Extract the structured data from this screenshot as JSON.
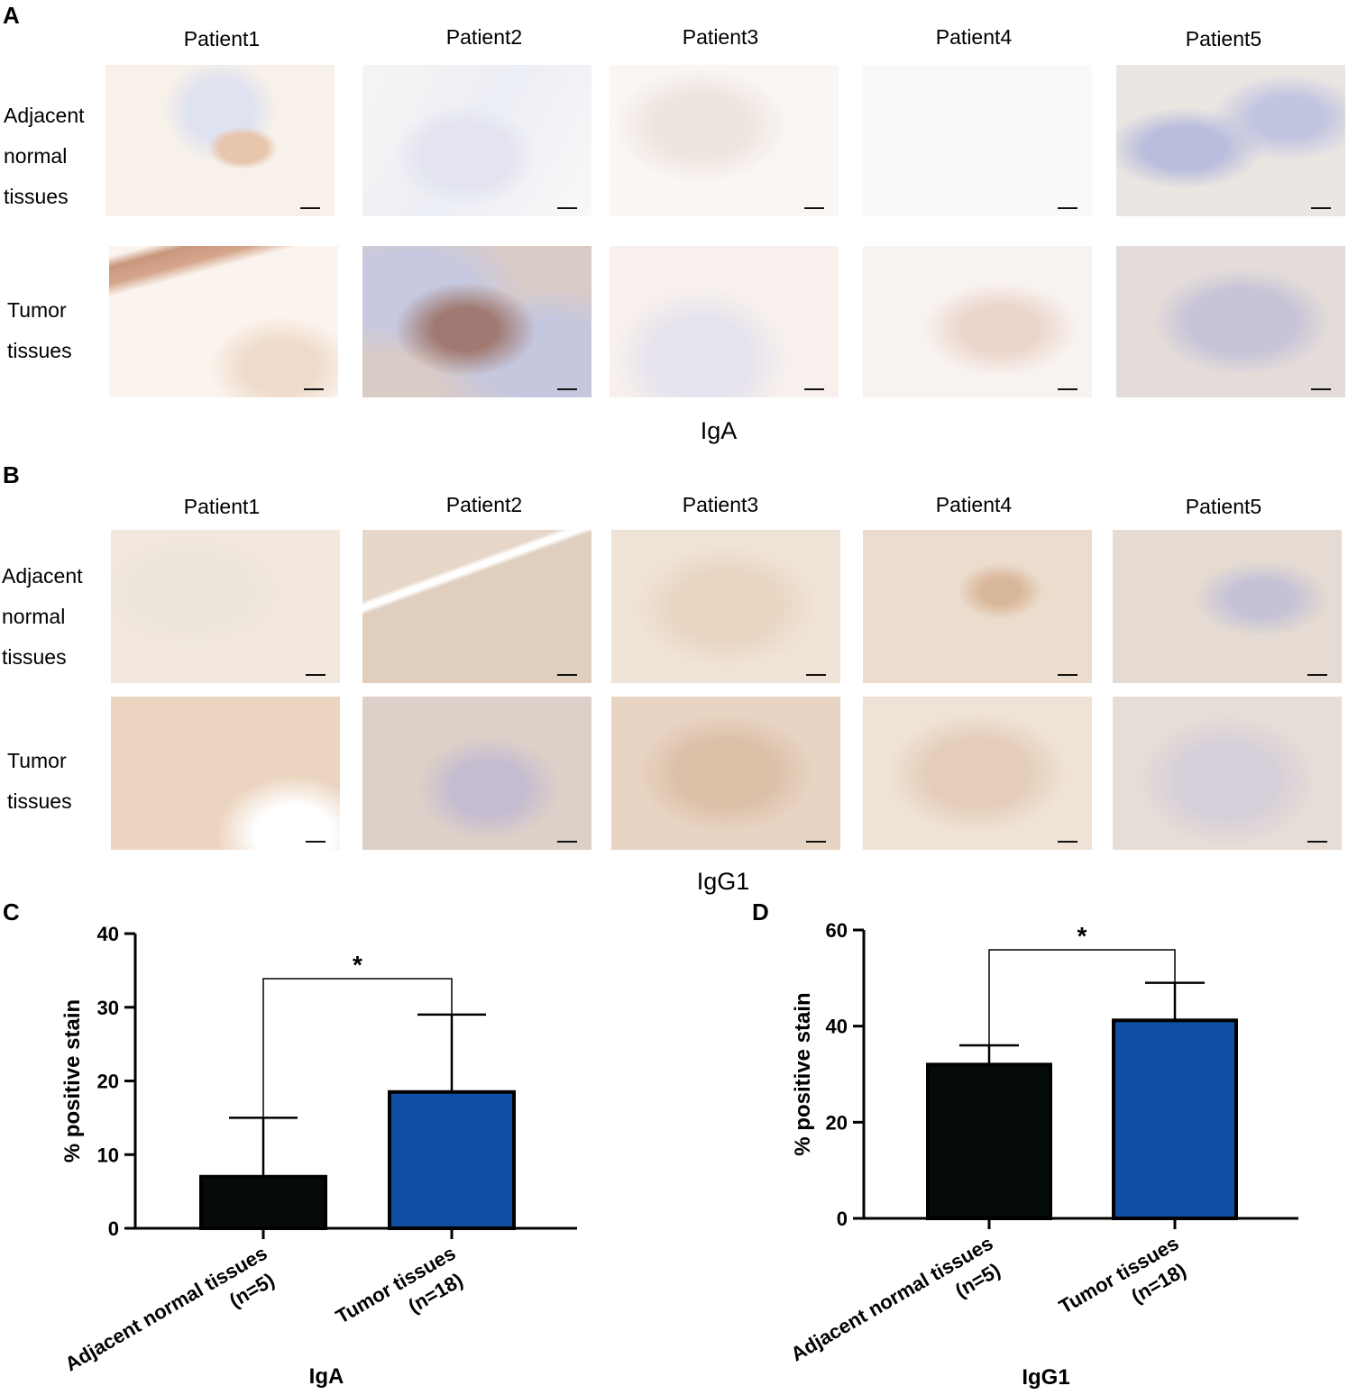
{
  "panels": {
    "A": {
      "letter": "A",
      "patients": [
        "Patient1",
        "Patient2",
        "Patient3",
        "Patient4",
        "Patient5"
      ],
      "row_normal": [
        "Adjacent",
        "normal",
        "tissues"
      ],
      "row_tumor": [
        "Tumor",
        "tissues"
      ],
      "caption": "IgA"
    },
    "B": {
      "letter": "B",
      "patients": [
        "Patient1",
        "Patient2",
        "Patient3",
        "Patient4",
        "Patient5"
      ],
      "row_normal": [
        "Adjacent",
        "normal",
        "tissues"
      ],
      "row_tumor": [
        "Tumor",
        "tissues"
      ],
      "caption": "IgG1"
    },
    "C": {
      "letter": "C"
    },
    "D": {
      "letter": "D"
    }
  },
  "colors": {
    "normal_bar": "#050a0a",
    "tumor_bar": "#0f4fa3",
    "stain_brown": "#c98e66",
    "stain_blue": "#7f8fc4"
  },
  "chart_data": [
    {
      "type": "bar",
      "panel": "C",
      "categories": [
        "Adjacent normal tissues\n(n=5)",
        "Tumor tissues\n(n=18)"
      ],
      "values": [
        7,
        18.5
      ],
      "error_upper": [
        15,
        29
      ],
      "ylabel": "% positive stain",
      "xlabel": "IgA",
      "ylim": [
        0,
        40
      ],
      "yticks": [
        0,
        10,
        20,
        30,
        40
      ],
      "significance": "*",
      "bar_colors": [
        "#050a0a",
        "#0f4fa3"
      ],
      "grid": false
    },
    {
      "type": "bar",
      "panel": "D",
      "categories": [
        "Adjacent normal tissues\n(n=5)",
        "Tumor tissues\n(n=18)"
      ],
      "values": [
        32,
        41.2
      ],
      "error_upper": [
        36,
        49
      ],
      "ylabel": "% positive stain",
      "xlabel": "IgG1",
      "ylim": [
        0,
        60
      ],
      "yticks": [
        0,
        20,
        40,
        60
      ],
      "significance": "*",
      "bar_colors": [
        "#050a0a",
        "#0f4fa3"
      ],
      "grid": false
    }
  ]
}
